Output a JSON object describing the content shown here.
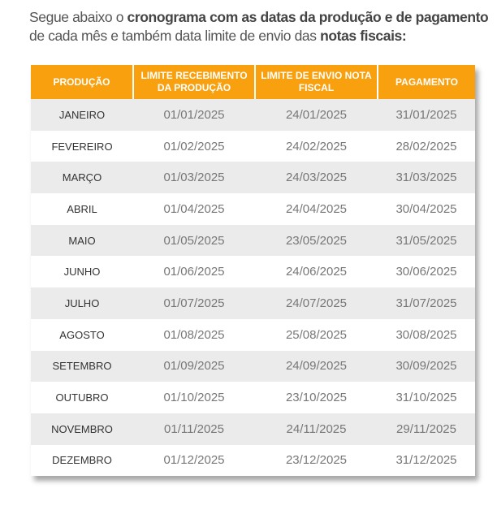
{
  "intro": {
    "p1": "Segue abaixo o ",
    "b1": "cronograma com as datas da produção e de pagamento",
    "p2": " de cada mês e também data limite de envio das ",
    "b2": "notas fiscais:"
  },
  "headers": [
    "PRODUÇÃO",
    "LIMITE RECEBIMENTO DA PRODUÇÃO",
    "LIMITE DE ENVIO NOTA FISCAL",
    "PAGAMENTO"
  ],
  "rows": [
    [
      "JANEIRO",
      "01/01/2025",
      "24/01/2025",
      "31/01/2025"
    ],
    [
      "FEVEREIRO",
      "01/02/2025",
      "24/02/2025",
      "28/02/2025"
    ],
    [
      "MARÇO",
      "01/03/2025",
      "24/03/2025",
      "31/03/2025"
    ],
    [
      "ABRIL",
      "01/04/2025",
      "24/04/2025",
      "30/04/2025"
    ],
    [
      "MAIO",
      "01/05/2025",
      "23/05/2025",
      "31/05/2025"
    ],
    [
      "JUNHO",
      "01/06/2025",
      "24/06/2025",
      "30/06/2025"
    ],
    [
      "JULHO",
      "01/07/2025",
      "24/07/2025",
      "31/07/2025"
    ],
    [
      "AGOSTO",
      "01/08/2025",
      "25/08/2025",
      "30/08/2025"
    ],
    [
      "SETEMBRO",
      "01/09/2025",
      "24/09/2025",
      "30/09/2025"
    ],
    [
      "OUTUBRO",
      "01/10/2025",
      "23/10/2025",
      "31/10/2025"
    ],
    [
      "NOVEMBRO",
      "01/11/2025",
      "24/11/2025",
      "29/11/2025"
    ],
    [
      "DEZEMBRO",
      "01/12/2025",
      "23/12/2025",
      "31/12/2025"
    ]
  ],
  "colors": {
    "header": "#f9a00f",
    "stripe": "#ebebeb"
  }
}
